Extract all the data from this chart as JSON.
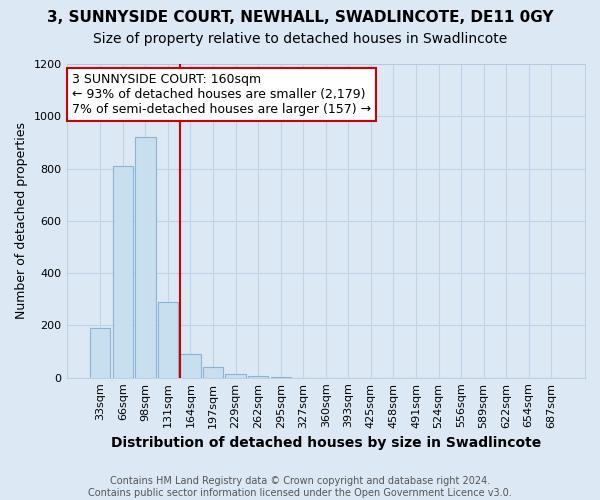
{
  "title1": "3, SUNNYSIDE COURT, NEWHALL, SWADLINCOTE, DE11 0GY",
  "title2": "Size of property relative to detached houses in Swadlincote",
  "xlabel": "Distribution of detached houses by size in Swadlincote",
  "ylabel": "Number of detached properties",
  "footnote": "Contains HM Land Registry data © Crown copyright and database right 2024.\nContains public sector information licensed under the Open Government Licence v3.0.",
  "bar_labels": [
    "33sqm",
    "66sqm",
    "98sqm",
    "131sqm",
    "164sqm",
    "197sqm",
    "229sqm",
    "262sqm",
    "295sqm",
    "327sqm",
    "360sqm",
    "393sqm",
    "425sqm",
    "458sqm",
    "491sqm",
    "524sqm",
    "556sqm",
    "589sqm",
    "622sqm",
    "654sqm",
    "687sqm"
  ],
  "bar_values": [
    190,
    810,
    920,
    290,
    90,
    40,
    15,
    5,
    2,
    0,
    0,
    0,
    0,
    0,
    0,
    0,
    0,
    0,
    0,
    0,
    0
  ],
  "bar_color": "#c8dff0",
  "bar_edgecolor": "#8ab4d4",
  "vline_color": "#cc0000",
  "vline_bin_index": 4,
  "ylim": [
    0,
    1200
  ],
  "yticks": [
    0,
    200,
    400,
    600,
    800,
    1000,
    1200
  ],
  "annotation_text": "3 SUNNYSIDE COURT: 160sqm\n← 93% of detached houses are smaller (2,179)\n7% of semi-detached houses are larger (157) →",
  "annotation_box_facecolor": "#ffffff",
  "annotation_box_edgecolor": "#cc0000",
  "grid_color": "#c0d4e8",
  "background_color": "#dce8f4",
  "title1_fontsize": 11,
  "title2_fontsize": 10,
  "xlabel_fontsize": 10,
  "ylabel_fontsize": 9,
  "tick_fontsize": 8,
  "annotation_fontsize": 9,
  "footnote_fontsize": 7
}
